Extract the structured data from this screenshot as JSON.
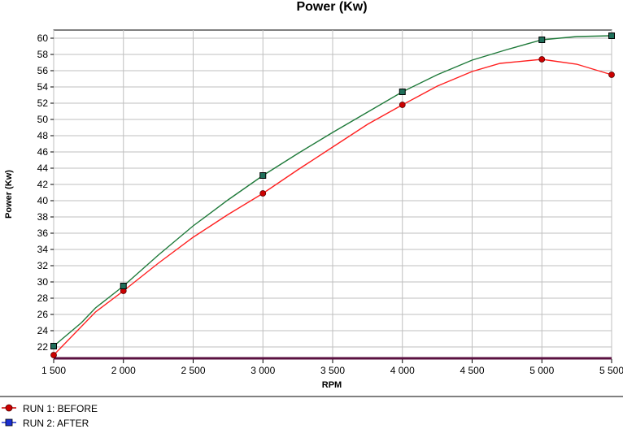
{
  "chart_data": {
    "type": "line",
    "title": "Power (Kw)",
    "xlabel": "RPM",
    "ylabel": "Power (Kw)",
    "xlim": [
      1500,
      5500
    ],
    "ylim": [
      20.5,
      61
    ],
    "grid": true,
    "legend_position": "bottom-left",
    "x_ticks": [
      1500,
      2000,
      2500,
      3000,
      3500,
      4000,
      4500,
      5000,
      5500
    ],
    "x_tick_labels": [
      "1 500",
      "2 000",
      "2 500",
      "3 000",
      "3 500",
      "4 000",
      "4 500",
      "5 000",
      "5 500"
    ],
    "y_ticks": [
      22,
      24,
      26,
      28,
      30,
      32,
      34,
      36,
      38,
      40,
      42,
      44,
      46,
      48,
      50,
      52,
      54,
      56,
      58,
      60
    ],
    "series": [
      {
        "name": "RUN 1: BEFORE",
        "legend_label": "RUN 1: BEFORE",
        "color": "#ff2020",
        "marker": "circle",
        "marker_color": "#cc0000",
        "x": [
          1500,
          1800,
          2000,
          2250,
          2500,
          2750,
          3000,
          3250,
          3500,
          3750,
          4000,
          4250,
          4500,
          4700,
          5000,
          5250,
          5500
        ],
        "values": [
          21.0,
          26.3,
          28.9,
          32.3,
          35.5,
          38.3,
          40.9,
          43.8,
          46.6,
          49.4,
          51.8,
          54.1,
          55.9,
          56.9,
          57.4,
          56.8,
          55.5
        ],
        "marker_x": [
          1500,
          2000,
          3000,
          4000,
          5000,
          5500
        ],
        "marker_values": [
          21.0,
          28.9,
          40.9,
          51.8,
          57.4,
          55.5
        ]
      },
      {
        "name": "RUN 2: AFTER",
        "legend_label": "RUN 2: AFTER",
        "color": "#1f7a3a",
        "marker": "square",
        "marker_color": "#1a2fd0",
        "x": [
          1500,
          1700,
          1800,
          2000,
          2250,
          2500,
          2750,
          3000,
          3250,
          3500,
          3750,
          4000,
          4250,
          4500,
          4750,
          5000,
          5250,
          5500
        ],
        "values": [
          22.1,
          25.0,
          26.8,
          29.5,
          33.3,
          36.9,
          40.1,
          43.1,
          45.8,
          48.4,
          50.9,
          53.4,
          55.5,
          57.3,
          58.6,
          59.8,
          60.2,
          60.3
        ],
        "marker_x": [
          1500,
          2000,
          3000,
          4000,
          5000,
          5500
        ],
        "marker_values": [
          22.1,
          29.5,
          43.1,
          53.4,
          59.8,
          60.3
        ]
      }
    ]
  }
}
